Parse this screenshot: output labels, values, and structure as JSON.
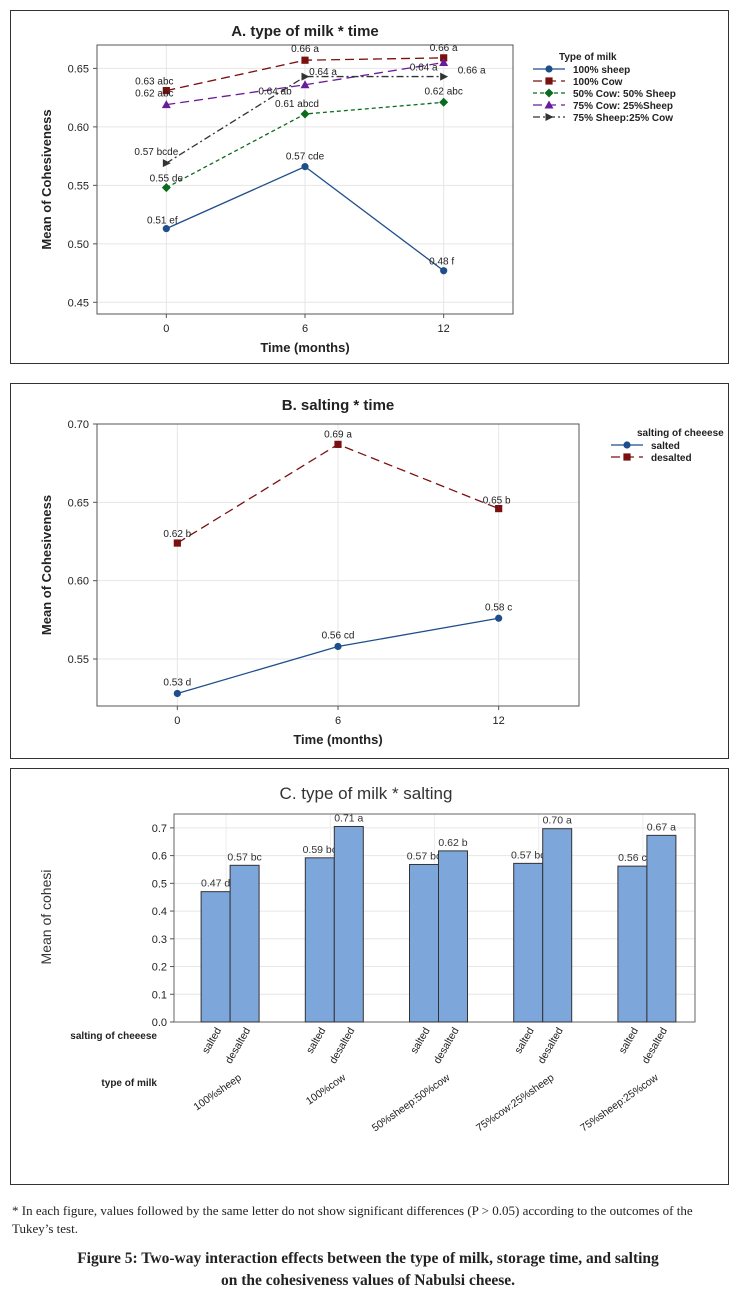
{
  "chart_data": [
    {
      "type": "line",
      "title": "A. type of milk * time",
      "xlabel": "Time (months)",
      "ylabel": "Mean of Cohesiveness",
      "x": [
        0,
        6,
        12
      ],
      "ylim": [
        0.44,
        0.67
      ],
      "yticks": [
        0.45,
        0.5,
        0.55,
        0.6,
        0.65
      ],
      "grid": true,
      "legend_title": "Type of milk",
      "legend_position": "right",
      "series": [
        {
          "name": "100% sheep",
          "values": [
            0.513,
            0.566,
            0.477
          ],
          "labels": [
            "0.51 ef",
            "0.57 cde",
            "0.48 f"
          ],
          "color": "#1f4e8c",
          "marker": "circle",
          "dash": "solid"
        },
        {
          "name": "100% Cow",
          "values": [
            0.631,
            0.657,
            0.659
          ],
          "labels": [
            "0.63 abc",
            "0.66 a",
            "0.66 a"
          ],
          "color": "#7a1010",
          "marker": "square",
          "dash": "long"
        },
        {
          "name": "50% Cow: 50% Sheep",
          "values": [
            0.548,
            0.611,
            0.621
          ],
          "labels": [
            "0.55 de",
            "0.61 abcd",
            "0.62 abc"
          ],
          "color": "#0a6b1f",
          "marker": "diamond",
          "dash": "short"
        },
        {
          "name": "75% Cow: 25%Sheep",
          "values": [
            0.619,
            0.636,
            0.655
          ],
          "labels": [
            "0.62 abc",
            "0.64 a",
            "0.66 a"
          ],
          "color": "#6a1b9a",
          "marker": "triangle",
          "dash": "long"
        },
        {
          "name": "75% Sheep:25% Cow",
          "values": [
            0.569,
            0.643,
            0.643
          ],
          "labels": [
            "0.57 bcde",
            "0.64 ab",
            "0.64 a"
          ],
          "color": "#333333",
          "marker": "arrow",
          "dash": "dashdot"
        }
      ]
    },
    {
      "type": "line",
      "title": "B. salting * time",
      "xlabel": "Time (months)",
      "ylabel": "Mean of Cohesiveness",
      "x": [
        0,
        6,
        12
      ],
      "ylim": [
        0.52,
        0.7
      ],
      "yticks": [
        0.55,
        0.6,
        0.65,
        0.7
      ],
      "grid": true,
      "legend_title": "salting of cheeese",
      "legend_position": "right",
      "series": [
        {
          "name": "salted",
          "values": [
            0.528,
            0.558,
            0.576
          ],
          "labels": [
            "0.53 d",
            "0.56 cd",
            "0.58 c"
          ],
          "color": "#1f4e8c",
          "marker": "circle",
          "dash": "solid"
        },
        {
          "name": "desalted",
          "values": [
            0.624,
            0.687,
            0.646
          ],
          "labels": [
            "0.62 b",
            "0.69 a",
            "0.65 b"
          ],
          "color": "#7a1010",
          "marker": "square",
          "dash": "long"
        }
      ]
    },
    {
      "type": "bar",
      "title": "C. type of milk * salting",
      "ylabel": "Mean of cohesi",
      "ylim": [
        0,
        0.75
      ],
      "yticks": [
        0.0,
        0.1,
        0.2,
        0.3,
        0.4,
        0.5,
        0.6,
        0.7
      ],
      "grid": true,
      "bar_color": "#7da6db",
      "row_labels": {
        "salting": "salting of cheeese",
        "milk": "type of milk"
      },
      "groups": [
        {
          "milk": "100%sheep",
          "bars": [
            {
              "salting": "salted",
              "value": 0.47,
              "label": "0.47 d"
            },
            {
              "salting": "desalted",
              "value": 0.565,
              "label": "0.57 bc"
            }
          ]
        },
        {
          "milk": "100%cow",
          "bars": [
            {
              "salting": "salted",
              "value": 0.592,
              "label": "0.59 bc"
            },
            {
              "salting": "desalted",
              "value": 0.705,
              "label": "0.71 a"
            }
          ]
        },
        {
          "milk": "50%sheep:50%cow",
          "bars": [
            {
              "salting": "salted",
              "value": 0.568,
              "label": "0.57 bc"
            },
            {
              "salting": "desalted",
              "value": 0.617,
              "label": "0.62 b"
            }
          ]
        },
        {
          "milk": "75%cow:25%sheep",
          "bars": [
            {
              "salting": "salted",
              "value": 0.572,
              "label": "0.57 bc"
            },
            {
              "salting": "desalted",
              "value": 0.697,
              "label": "0.70 a"
            }
          ]
        },
        {
          "milk": "75%sheep:25%cow",
          "bars": [
            {
              "salting": "salted",
              "value": 0.562,
              "label": "0.56 c"
            },
            {
              "salting": "desalted",
              "value": 0.673,
              "label": "0.67 a"
            }
          ]
        }
      ]
    }
  ],
  "footnote": "* In each figure, values followed by the same letter do not show significant differences (P > 0.05) according to the outcomes of the Tukey’s test.",
  "caption": {
    "line1": "Figure 5: Two-way interaction effects between the type of milk, storage time, and salting",
    "line2": "on the cohesiveness values of Nabulsi cheese."
  }
}
